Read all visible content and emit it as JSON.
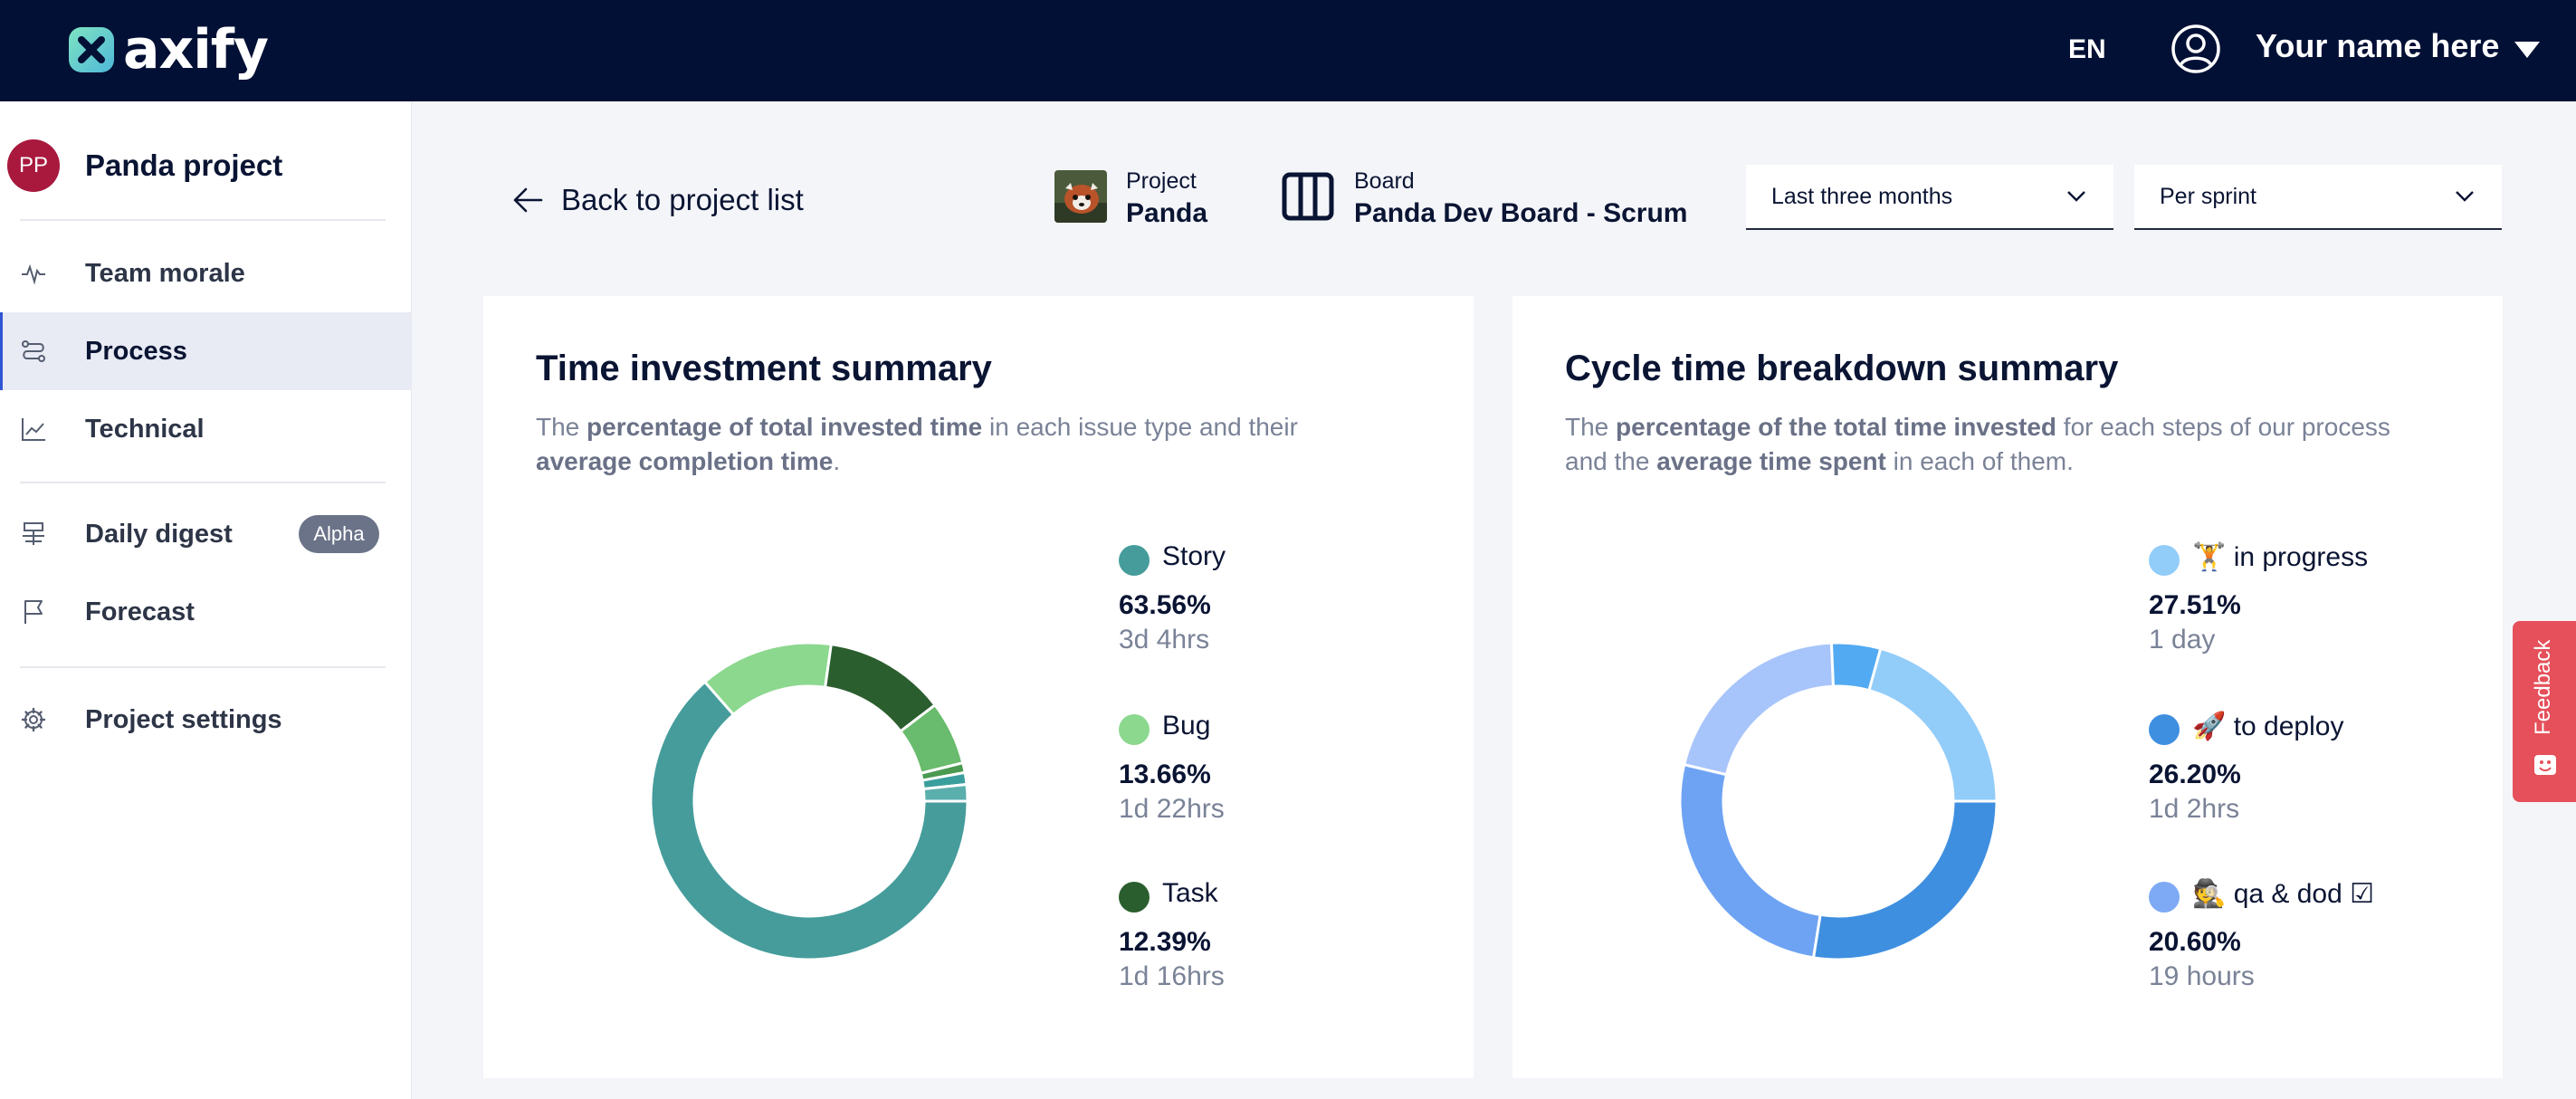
{
  "header": {
    "logo_text": "axify",
    "language": "EN",
    "user_name": "Your name here"
  },
  "sidebar": {
    "avatar_initials": "PP",
    "project_name": "Panda project",
    "items": [
      {
        "label": "Team morale",
        "icon": "pulse-icon"
      },
      {
        "label": "Process",
        "icon": "process-flow-icon",
        "active": true
      },
      {
        "label": "Technical",
        "icon": "line-chart-icon"
      },
      {
        "label": "Daily digest",
        "icon": "digest-icon",
        "badge": "Alpha"
      },
      {
        "label": "Forecast",
        "icon": "flag-icon"
      },
      {
        "label": "Project settings",
        "icon": "gear-icon"
      }
    ]
  },
  "toolbar": {
    "back_label": "Back to project list",
    "project_label": "Project",
    "project_value": "Panda",
    "board_label": "Board",
    "board_value": "Panda Dev Board - Scrum",
    "period_select": "Last three months",
    "granularity_select": "Per sprint"
  },
  "time_investment": {
    "title": "Time investment summary",
    "desc": {
      "p1": "The ",
      "b1": "percentage of total invested time",
      "p2": " in each issue type and their ",
      "b2": "average completion time",
      "p3": "."
    },
    "legend": [
      {
        "name": "Story",
        "pct": "63.56%",
        "time": "3d 4hrs"
      },
      {
        "name": "Bug",
        "pct": "13.66%",
        "time": "1d 22hrs"
      },
      {
        "name": "Task",
        "pct": "12.39%",
        "time": "1d 16hrs"
      }
    ]
  },
  "cycle_time": {
    "title": "Cycle time breakdown summary",
    "desc": {
      "p1": "The ",
      "b1": "percentage of the total time invested",
      "p2": " for each steps of our process and the ",
      "b2": "average time spent",
      "p3": " in each of them."
    },
    "legend": [
      {
        "name": "🏋 in progress",
        "pct": "27.51%",
        "time": "1 day"
      },
      {
        "name": "🚀 to deploy",
        "pct": "26.20%",
        "time": "1d 2hrs"
      },
      {
        "name": "🕵 qa & dod ☑",
        "pct": "20.60%",
        "time": "19 hours"
      }
    ]
  },
  "feedback_label": "Feedback",
  "chart_data": [
    {
      "type": "pie",
      "donut": true,
      "start_angle_deg": 90,
      "slices": [
        {
          "label": "Story",
          "value": 63.56,
          "color": "#459c9b"
        },
        {
          "label": "Bug",
          "value": 13.66,
          "color": "#8bd88e"
        },
        {
          "label": "Task",
          "value": 12.39,
          "color": "#2b5e2e"
        },
        {
          "label": "",
          "value": 6.5,
          "color": "#69bb6d"
        },
        {
          "label": "",
          "value": 1.0,
          "color": "#4a9a50"
        },
        {
          "label": "",
          "value": 1.2,
          "color": "#3a9e9d"
        },
        {
          "label": "",
          "value": 1.69,
          "color": "#5aaeac"
        }
      ]
    },
    {
      "type": "pie",
      "donut": true,
      "start_angle_deg": 90,
      "slices": [
        {
          "label": "🏋 in progress",
          "value": 27.51,
          "color": "#3f8fe0"
        },
        {
          "label": "🚀 to deploy",
          "value": 26.2,
          "color": "#6ea3f4"
        },
        {
          "label": "🕵 qa & dod ☑",
          "value": 20.6,
          "color": "#a7c4fb"
        },
        {
          "label": "",
          "value": 5.0,
          "color": "#52aaf2"
        },
        {
          "label": "",
          "value": 20.69,
          "color": "#92ccf9"
        }
      ]
    }
  ]
}
